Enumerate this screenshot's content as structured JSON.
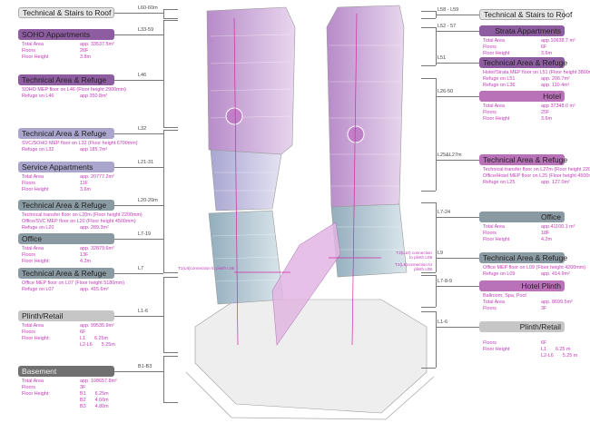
{
  "colors": {
    "text_accent": "#c23ab8",
    "purple": "#8e5ca0",
    "lavender": "#a9a5cc",
    "slate": "#8a9aa3",
    "light_gray": "#e4e4e4",
    "gray": "#c6c6c6",
    "dark_gray": "#707070",
    "pink": "#b971b8"
  },
  "left": [
    {
      "level": "L60-60m",
      "title": "Technical & Stairs to Roof",
      "color": "light_gray",
      "rows": []
    },
    {
      "level": "L33-59",
      "title": "SOHO Appartments",
      "color": "purple",
      "rows": [
        [
          "Total Area",
          "app. 33537.5m²"
        ],
        [
          "Floors",
          "26F"
        ],
        [
          "Floor Height",
          "3.8m"
        ]
      ]
    },
    {
      "level": "L46",
      "title": "Technical Area & Refuge",
      "color": "purple",
      "rows": [
        [
          "SOHO MEP floor on L46 (Floor height 2900mm)"
        ],
        [
          "Refuge on L46",
          "app 350.8m²"
        ]
      ]
    },
    {
      "level": "L32",
      "title": "Technical Area & Refuge",
      "color": "lavender",
      "rows": [
        [
          "SVC/SOHO MEP floor on L32 (Floor height 6700mm)"
        ],
        [
          "Refuge on L32",
          "app 185.7m²"
        ]
      ]
    },
    {
      "level": "L21-31",
      "title": "Service Appartments",
      "color": "lavender",
      "rows": [
        [
          "Total Area",
          "app. 20777.2m²"
        ],
        [
          "Floors",
          "11F"
        ],
        [
          "Floor Height",
          "3.6m"
        ]
      ]
    },
    {
      "level": "L20-20m",
      "title": "Technical Area & Refuge",
      "color": "slate",
      "rows": [
        [
          "Technical transfer floor on L20m (Floor height 2200mm)"
        ],
        [
          "Office/SVC MEP floor on L20 (Floor height 4500mm)"
        ],
        [
          "Refuge on L20",
          "app. 289.3m²"
        ]
      ]
    },
    {
      "level": "L7-19",
      "title": "Office",
      "color": "slate",
      "rows": [
        [
          "Total Area",
          "app. 32879.6m²"
        ],
        [
          "Floors",
          "13F"
        ],
        [
          "Floor Height:",
          "4.2m"
        ]
      ]
    },
    {
      "level": "L7",
      "title": "Technical Area & Refuge",
      "color": "slate",
      "rows": [
        [
          "Office MEP floor on L07 (Floor height 5180mm)"
        ],
        [
          "Refuge on L07",
          "app. 415.6m²"
        ]
      ]
    },
    {
      "level": "L1-6",
      "title": "Plinth/Retail",
      "color": "gray",
      "rows": [
        [
          "Total Area",
          "app. 99535.9m²"
        ],
        [
          "Floors",
          "6F"
        ],
        [
          "Floor Height:",
          "L1",
          "6.25m"
        ],
        [
          "",
          "L2-L6",
          "5.25m"
        ]
      ]
    },
    {
      "level": "B1-B3",
      "title": "Basement",
      "color": "dark_gray",
      "rows": [
        [
          "Total Area",
          "app. 108657.8m²"
        ],
        [
          "Floors",
          "3F"
        ],
        [
          "Floor Height:",
          "B1",
          "6.25m"
        ],
        [
          "",
          "B2",
          "4.60m"
        ],
        [
          "",
          "B3",
          "4.80m"
        ]
      ]
    }
  ],
  "right": [
    {
      "level": "L58 - L59",
      "title": "Technical & Stairs to Roof",
      "color": "light_gray",
      "rows": []
    },
    {
      "level": "L52 - 57",
      "title": "Strata Appartments",
      "color": "purple",
      "rows": [
        [
          "Total Area",
          "app.10638.7 m²"
        ],
        [
          "Floors",
          "6F"
        ],
        [
          "Floor Height",
          "3.6m"
        ]
      ]
    },
    {
      "level": "L51",
      "title": "Technical Area & Refuge",
      "color": "purple",
      "rows": [
        [
          "Hotel/Strata MEP floor on L51 (Floor height 3800mm)"
        ],
        [
          "Refuge on L51",
          "app. 206.7m²"
        ],
        [
          "Refuge on L36",
          "app. 110.4m²"
        ]
      ]
    },
    {
      "level": "L26-50",
      "title": "Hotel",
      "color": "pink",
      "rows": [
        [
          "Total Area",
          "app 37348.0 m²"
        ],
        [
          "Floors",
          "25F"
        ],
        [
          "Floor Height",
          "3.6m"
        ]
      ]
    },
    {
      "level": "L25&L27m",
      "title": "Technical Area & Refuge",
      "color": "pink",
      "rows": [
        [
          "Technical transfer floor on L27m (Floor height 2200mm)"
        ],
        [
          "Office/Hotel  MEP floor on L25 (Floor height 4500mm)"
        ],
        [
          "Refuge on L25",
          "app. 127.0m²"
        ]
      ]
    },
    {
      "level": "L7-24",
      "title": "Office",
      "color": "slate",
      "rows": [
        [
          "Total Area",
          "app.41100.1 m²"
        ],
        [
          "Floors",
          "18F"
        ],
        [
          "Floor Height",
          "4.2m"
        ]
      ]
    },
    {
      "level": "L9",
      "title": "Technical Area & Refuge",
      "color": "slate",
      "rows": [
        [
          "Office MEP floor on L09 (Floor height 4200mm)"
        ],
        [
          "Refuge on L09",
          "app. 414.9m²"
        ]
      ]
    },
    {
      "level": "L7-8-9",
      "title": "Hotel Plinth",
      "color": "pink",
      "rows": [
        [
          "Ballroom, Spa, Pool"
        ],
        [
          "Total Area",
          "app. 8699.5m²"
        ],
        [
          "Floors",
          "3F"
        ]
      ]
    },
    {
      "level": "L1-6",
      "title": "Plinth/Retail",
      "color": "gray",
      "rows": [
        [
          ""
        ],
        [
          "Floors",
          "6F"
        ],
        [
          "Floor Height",
          "L1",
          "6.25 m"
        ],
        [
          "",
          "L2-L6",
          "5.25 m"
        ]
      ]
    }
  ],
  "connections": [
    "T1(L8)connection to plinth L08",
    "T2(L10) connection to plinth L09",
    "T2(L8)connection to plinth L08"
  ]
}
